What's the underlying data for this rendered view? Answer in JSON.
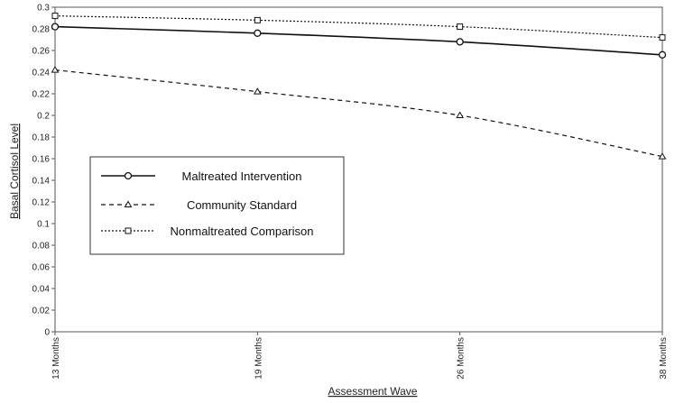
{
  "chart_data": {
    "type": "line",
    "title": "",
    "xlabel": "Assessment Wave",
    "ylabel": "Basal Cortisol Level",
    "categories": [
      "13 Months",
      "19 Months",
      "26 Months",
      "38 Months"
    ],
    "ylim": [
      0,
      0.3
    ],
    "yticks": [
      "0",
      "0.02",
      "0.04",
      "0.06",
      "0.08",
      "0.1",
      "0.12",
      "0.14",
      "0.16",
      "0.18",
      "0.2",
      "0.22",
      "0.24",
      "0.26",
      "0.28",
      "0.3"
    ],
    "grid": false,
    "legend_position": "middle-left",
    "series": [
      {
        "name": "Maltreated Intervention",
        "values": [
          0.282,
          0.276,
          0.268,
          0.256
        ],
        "line_style": "solid",
        "marker": "circle",
        "color": "#111111"
      },
      {
        "name": "Community Standard",
        "values": [
          0.242,
          0.222,
          0.2,
          0.162
        ],
        "line_style": "dashed",
        "marker": "triangle",
        "color": "#111111"
      },
      {
        "name": "Nonmaltreated Comparison",
        "values": [
          0.292,
          0.288,
          0.282,
          0.272
        ],
        "line_style": "dotted",
        "marker": "square",
        "color": "#111111"
      }
    ]
  }
}
